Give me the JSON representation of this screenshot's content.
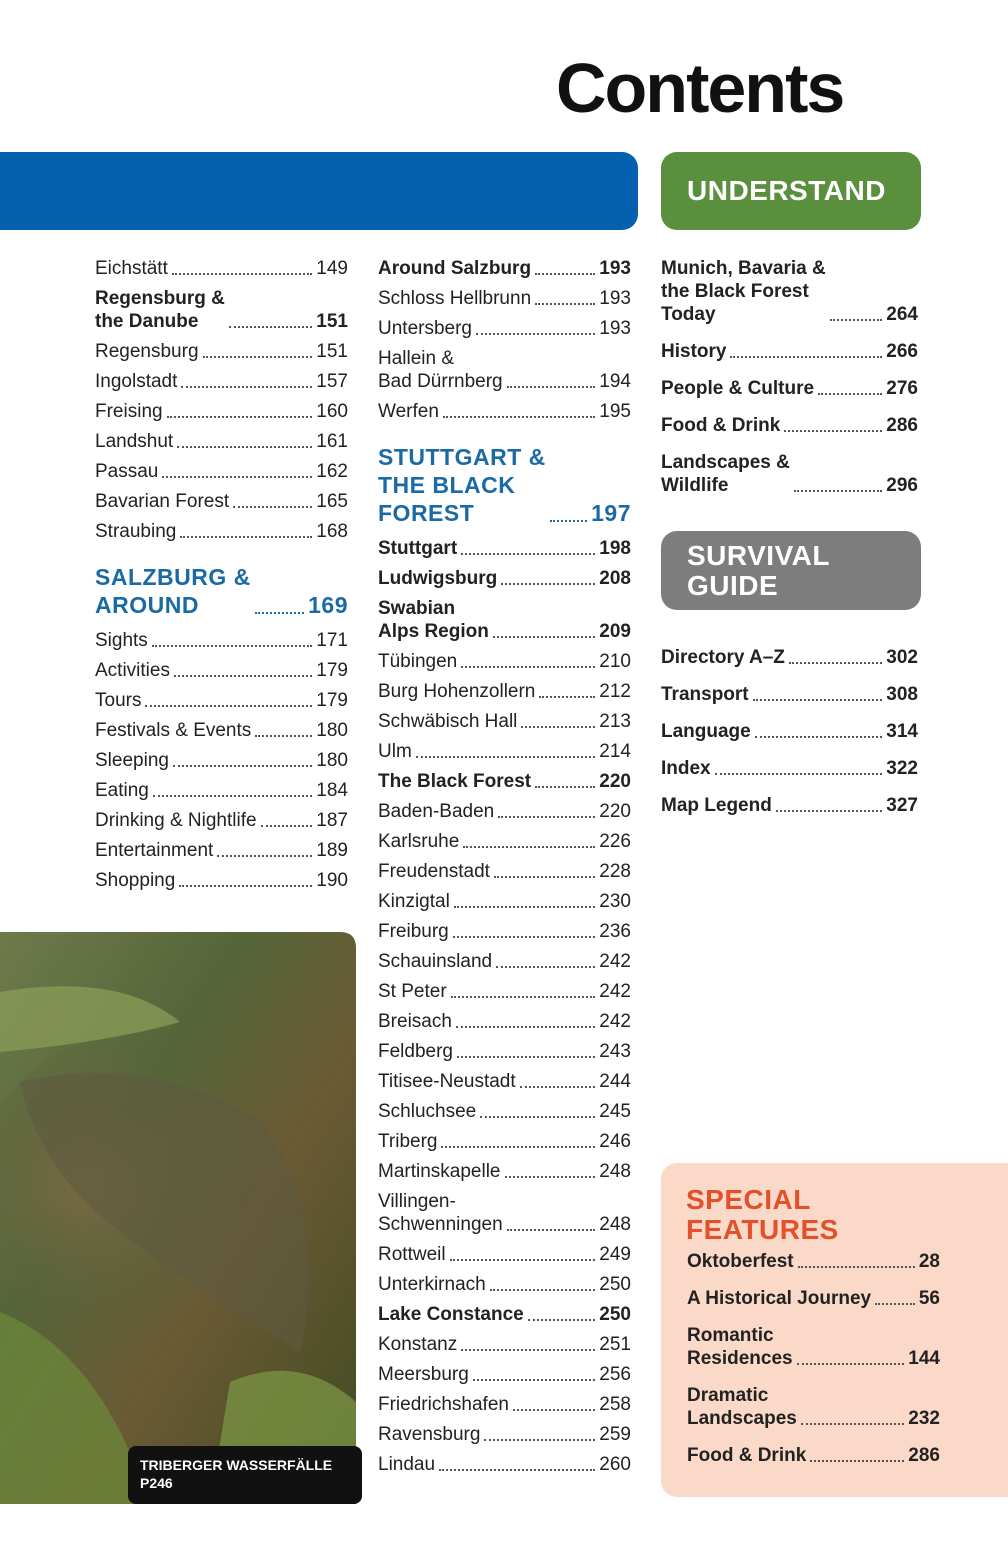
{
  "title": "Contents",
  "photo_caption": [
    "TRIBERGER WASSERFÄLLE",
    "P246"
  ],
  "col1": {
    "sections": [
      {
        "items": [
          {
            "label": "Eichstätt",
            "page": 149
          },
          {
            "label": "Regensburg &\nthe Danube",
            "page": 151,
            "bold": true
          },
          {
            "label": "Regensburg",
            "page": 151
          },
          {
            "label": "Ingolstadt",
            "page": 157
          },
          {
            "label": "Freising",
            "page": 160
          },
          {
            "label": "Landshut",
            "page": 161
          },
          {
            "label": "Passau",
            "page": 162
          },
          {
            "label": "Bavarian Forest",
            "page": 165
          },
          {
            "label": "Straubing",
            "page": 168
          }
        ]
      },
      {
        "heading": "SALZBURG &\nAROUND",
        "page": 169,
        "items": [
          {
            "label": "Sights",
            "page": 171
          },
          {
            "label": "Activities",
            "page": 179
          },
          {
            "label": "Tours",
            "page": 179
          },
          {
            "label": "Festivals & Events",
            "page": 180
          },
          {
            "label": "Sleeping",
            "page": 180
          },
          {
            "label": "Eating",
            "page": 184
          },
          {
            "label": "Drinking & Nightlife",
            "page": 187
          },
          {
            "label": "Entertainment",
            "page": 189
          },
          {
            "label": "Shopping",
            "page": 190
          }
        ]
      }
    ]
  },
  "col2": {
    "sections": [
      {
        "items": [
          {
            "label": "Around Salzburg",
            "page": 193,
            "bold": true
          },
          {
            "label": "Schloss Hellbrunn",
            "page": 193
          },
          {
            "label": "Untersberg",
            "page": 193
          },
          {
            "label": "Hallein &\nBad Dürrnberg",
            "page": 194
          },
          {
            "label": "Werfen",
            "page": 195
          }
        ]
      },
      {
        "heading": "STUTTGART &\nTHE BLACK\nFOREST",
        "page": 197,
        "items": [
          {
            "label": "Stuttgart",
            "page": 198,
            "bold": true
          },
          {
            "label": "Ludwigsburg",
            "page": 208,
            "bold": true
          },
          {
            "label": "Swabian\nAlps Region",
            "page": 209,
            "bold": true
          },
          {
            "label": "Tübingen",
            "page": 210
          },
          {
            "label": "Burg Hohenzollern",
            "page": 212
          },
          {
            "label": "Schwäbisch Hall",
            "page": 213
          },
          {
            "label": "Ulm",
            "page": 214
          },
          {
            "label": "The Black Forest",
            "page": 220,
            "bold": true
          },
          {
            "label": "Baden-Baden",
            "page": 220
          },
          {
            "label": "Karlsruhe",
            "page": 226
          },
          {
            "label": "Freudenstadt",
            "page": 228
          },
          {
            "label": "Kinzigtal",
            "page": 230
          },
          {
            "label": "Freiburg",
            "page": 236
          },
          {
            "label": "Schauinsland",
            "page": 242
          },
          {
            "label": "St Peter",
            "page": 242
          },
          {
            "label": "Breisach",
            "page": 242
          },
          {
            "label": "Feldberg",
            "page": 243
          },
          {
            "label": "Titisee-Neustadt",
            "page": 244
          },
          {
            "label": "Schluchsee",
            "page": 245
          },
          {
            "label": "Triberg",
            "page": 246
          },
          {
            "label": "Martinskapelle",
            "page": 248
          },
          {
            "label": "Villingen-\nSchwenningen",
            "page": 248
          },
          {
            "label": "Rottweil",
            "page": 249
          },
          {
            "label": "Unterkirnach",
            "page": 250
          },
          {
            "label": "Lake Constance",
            "page": 250,
            "bold": true
          },
          {
            "label": "Konstanz",
            "page": 251
          },
          {
            "label": "Meersburg",
            "page": 256
          },
          {
            "label": "Friedrichshafen",
            "page": 258
          },
          {
            "label": "Ravensburg",
            "page": 259
          },
          {
            "label": "Lindau",
            "page": 260
          }
        ]
      }
    ]
  },
  "understand": {
    "heading": "UNDERSTAND",
    "items": [
      {
        "label": "Munich, Bavaria &\nthe Black Forest\nToday",
        "page": 264,
        "bold": true
      },
      {
        "label": "History",
        "page": 266,
        "bold": true
      },
      {
        "label": "People & Culture",
        "page": 276,
        "bold": true
      },
      {
        "label": "Food & Drink",
        "page": 286,
        "bold": true
      },
      {
        "label": "Landscapes &\nWildlife",
        "page": 296,
        "bold": true
      }
    ]
  },
  "survival": {
    "heading": "SURVIVAL\nGUIDE",
    "items": [
      {
        "label": "Directory A–Z",
        "page": 302,
        "bold": true
      },
      {
        "label": "Transport",
        "page": 308,
        "bold": true
      },
      {
        "label": "Language",
        "page": 314,
        "bold": true
      },
      {
        "label": "Index",
        "page": 322,
        "bold": true
      },
      {
        "label": "Map Legend",
        "page": 327,
        "bold": true
      }
    ]
  },
  "special": {
    "heading": "SPECIAL\nFEATURES",
    "items": [
      {
        "label": "Oktoberfest",
        "page": 28,
        "bold": true
      },
      {
        "label": "A Historical Journey",
        "page": 56,
        "bold": true
      },
      {
        "label": "Romantic\nResidences",
        "page": 144,
        "bold": true
      },
      {
        "label": "Dramatic\nLandscapes",
        "page": 232,
        "bold": true
      },
      {
        "label": "Food & Drink",
        "page": 286,
        "bold": true
      }
    ]
  }
}
